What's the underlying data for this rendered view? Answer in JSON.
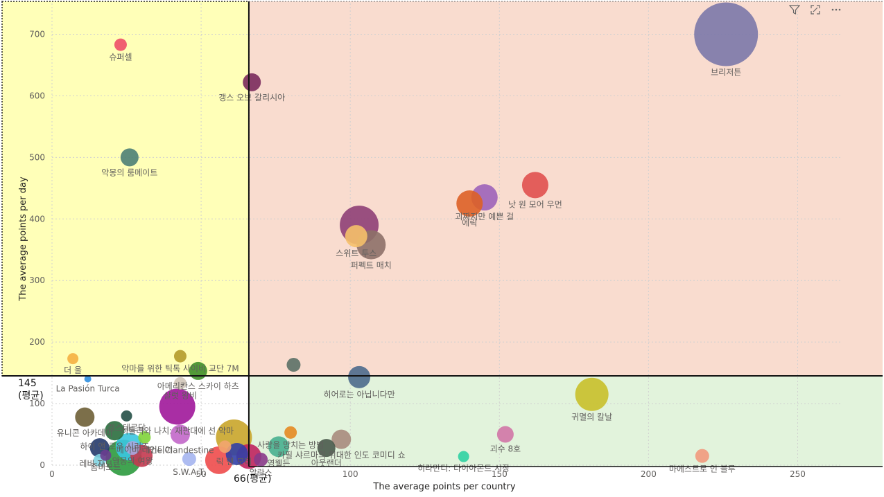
{
  "toolbar": {
    "filter_icon": "filter-icon",
    "focus_icon": "focus-mode-icon",
    "more_icon": "more-options-icon"
  },
  "average_markers": {
    "y_avg_value": "145",
    "y_avg_suffix": "(평균)",
    "x_avg_label": "66(평균)"
  },
  "chart_data": {
    "type": "scatter",
    "xlabel": "The average points per country",
    "ylabel": "The average points per day",
    "xlim": [
      0,
      265
    ],
    "ylim": [
      0,
      750
    ],
    "xticks": [
      0,
      50,
      100,
      150,
      200,
      250
    ],
    "yticks": [
      0,
      100,
      200,
      300,
      400,
      500,
      600,
      700
    ],
    "grid": true,
    "x_avg": 66,
    "y_avg": 145,
    "quadrant_colors": {
      "top_left": "#ffffb8",
      "top_right": "#f9dccf",
      "bottom_right": "#e2f3dc",
      "bottom_left": "#ffffff"
    },
    "points": [
      {
        "label": "브리저튼",
        "x": 226,
        "y": 700,
        "size": 46,
        "color": "#7b78a8"
      },
      {
        "label": "슈퍼셀",
        "x": 23,
        "y": 683,
        "size": 9,
        "color": "#ee4f68"
      },
      {
        "label": "갱스 오브 갈리시아",
        "x": 67,
        "y": 622,
        "size": 13,
        "color": "#7a2a5c"
      },
      {
        "label": "악몽의 룸메이트",
        "x": 26,
        "y": 500,
        "size": 13,
        "color": "#4d7f76"
      },
      {
        "label": "괴짜지만 예쁜 걸",
        "x": 145,
        "y": 435,
        "size": 19,
        "color": "#9c63b9"
      },
      {
        "label": "낫 원 모어 우먼",
        "x": 162,
        "y": 455,
        "size": 19,
        "color": "#e0504e"
      },
      {
        "label": "에릭",
        "x": 140,
        "y": 425,
        "size": 19,
        "color": "#dd6126"
      },
      {
        "label": "",
        "x": 103,
        "y": 390,
        "size": 28,
        "color": "#8e3f75"
      },
      {
        "label": "스위트 투스",
        "x": 102,
        "y": 372,
        "size": 16,
        "color": "#f5c06a"
      },
      {
        "label": "퍼펙트 매치",
        "x": 107,
        "y": 358,
        "size": 21,
        "color": "#8d7068"
      },
      {
        "label": "악마를 위한 틱톡 사이비 교단 7M",
        "x": 43,
        "y": 177,
        "size": 9,
        "color": "#b49b2a"
      },
      {
        "label": "아메리칸스 스카이 하츠",
        "x": 49,
        "y": 153,
        "size": 13,
        "color": "#3f8f2a"
      },
      {
        "label": "더 울",
        "x": 7,
        "y": 173,
        "size": 8,
        "color": "#f5b041"
      },
      {
        "label": "",
        "x": 81,
        "y": 163,
        "size": 10,
        "color": "#5b7066"
      },
      {
        "label": "히어로는 아닙니다만",
        "x": 103,
        "y": 143,
        "size": 16,
        "color": "#4c6a8c"
      },
      {
        "label": "La Pasión Turca",
        "x": 12,
        "y": 140,
        "size": 5,
        "color": "#2f8fe0"
      },
      {
        "label": "샬럿 왕비",
        "x": 43,
        "y": 133,
        "size": 9,
        "color": "#d1c7b9"
      },
      {
        "label": "귀멸의 칼날",
        "x": 181,
        "y": 115,
        "size": 24,
        "color": "#c9c02a"
      },
      {
        "label": "히틀러와 나치: 재판대에 선 악마",
        "x": 42,
        "y": 95,
        "size": 26,
        "color": "#a0179a"
      },
      {
        "label": "유니콘 아카데미",
        "x": 11,
        "y": 78,
        "size": 14,
        "color": "#6e5f36"
      },
      {
        "label": "갱스테르담",
        "x": 25,
        "y": 80,
        "size": 8,
        "color": "#234f46"
      },
      {
        "label": "사랑을 망치는 방법",
        "x": 80,
        "y": 53,
        "size": 9,
        "color": "#e58a22"
      },
      {
        "label": "괴수 8호",
        "x": 152,
        "y": 50,
        "size": 12,
        "color": "#d276a6"
      },
      {
        "label": "릭 앤 모티",
        "x": 61,
        "y": 45,
        "size": 26,
        "color": "#c9a52a"
      },
      {
        "label": "카필 샤르마의 위대한 인도 코미디 쇼",
        "x": 97,
        "y": 42,
        "size": 14,
        "color": "#a88b7d"
      },
      {
        "label": "하이 앤 로우 시리즈",
        "x": 21,
        "y": 56,
        "size": 14,
        "color": "#2a6e3e"
      },
      {
        "label": "",
        "x": 26,
        "y": 30,
        "size": 20,
        "color": "#3ac7e0"
      },
      {
        "label": "베이비 레인디어",
        "x": 31,
        "y": 45,
        "size": 9,
        "color": "#7fd33a"
      },
      {
        "label": "The Clandestine",
        "x": 43,
        "y": 50,
        "size": 14,
        "color": "#c267c9"
      },
      {
        "label": "영웰든",
        "x": 76,
        "y": 30,
        "size": 15,
        "color": "#48b08f"
      },
      {
        "label": "아웃랜더",
        "x": 92,
        "y": 28,
        "size": 13,
        "color": "#4a5a4b"
      },
      {
        "label": "히라만디: 다이아몬드 시장",
        "x": 138,
        "y": 14,
        "size": 8,
        "color": "#2fd1a2"
      },
      {
        "label": "마에스트로 인 블루",
        "x": 218,
        "y": 15,
        "size": 10,
        "color": "#f29a7d"
      },
      {
        "label": "레비 자보르",
        "x": 16,
        "y": 28,
        "size": 14,
        "color": "#253a6b"
      },
      {
        "label": "",
        "x": 24,
        "y": 12,
        "size": 26,
        "color": "#2c9a3e"
      },
      {
        "label": "",
        "x": 30,
        "y": 15,
        "size": 16,
        "color": "#c3394f"
      },
      {
        "label": "악몽의 여왕",
        "x": 27,
        "y": 28,
        "size": 10,
        "color": "#a9a9e0"
      },
      {
        "label": "S.W.A.T.",
        "x": 46,
        "y": 10,
        "size": 10,
        "color": "#a5b5f0"
      },
      {
        "label": "",
        "x": 56,
        "y": 8,
        "size": 20,
        "color": "#ee4b4b"
      },
      {
        "label": "",
        "x": 58,
        "y": 30,
        "size": 9,
        "color": "#f3a56f"
      },
      {
        "label": "",
        "x": 62,
        "y": 18,
        "size": 16,
        "color": "#3240a6"
      },
      {
        "label": "",
        "x": 66,
        "y": 14,
        "size": 18,
        "color": "#c0245e"
      },
      {
        "label": "알란스",
        "x": 70,
        "y": 9,
        "size": 10,
        "color": "#8a3a8a"
      },
      {
        "label": "",
        "x": 16,
        "y": 8,
        "size": 9,
        "color": "#7fd3e0"
      },
      {
        "label": "좀비모드",
        "x": 18,
        "y": 16,
        "size": 8,
        "color": "#6a3d8f"
      }
    ]
  }
}
